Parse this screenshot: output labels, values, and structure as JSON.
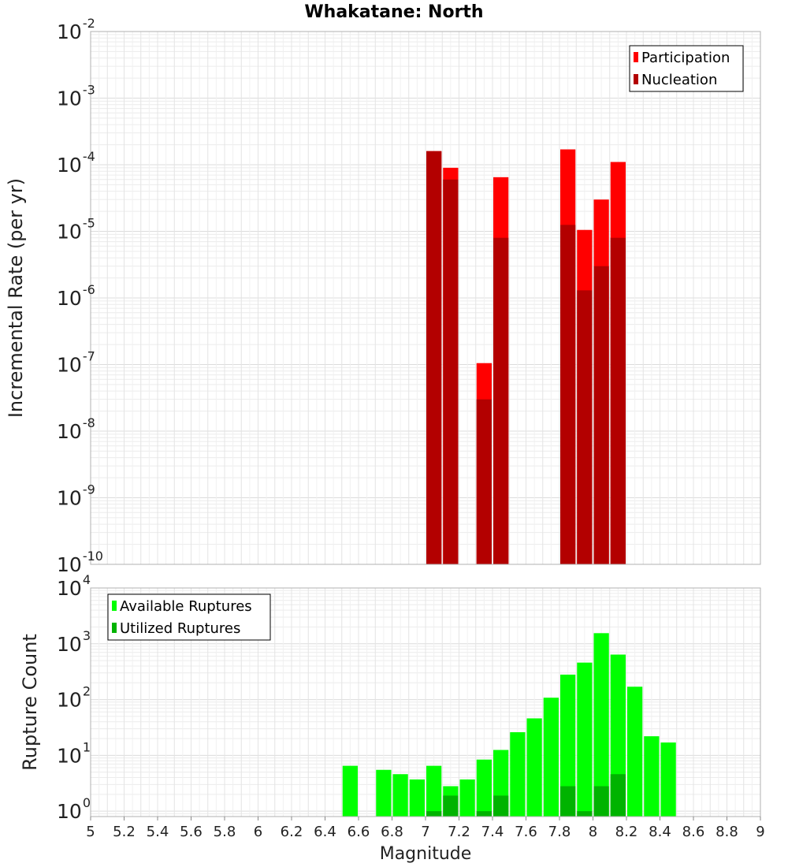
{
  "chart_data": [
    {
      "type": "bar",
      "title": "Whakatane: North",
      "ylabel": "Incremental Rate (per yr)",
      "yscale": "log",
      "ylim": [
        1e-10,
        0.01
      ],
      "xlim": [
        5,
        9
      ],
      "grid": true,
      "legend_position": "top-right",
      "bar_width": 0.1,
      "series": [
        {
          "name": "Participation",
          "color": "#ff0000",
          "x": [
            7.05,
            7.15,
            7.35,
            7.45,
            7.85,
            7.95,
            8.05,
            8.15
          ],
          "values": [
            0.00016,
            9e-05,
            1.05e-07,
            6.5e-05,
            0.00017,
            1.05e-05,
            3e-05,
            0.00011
          ]
        },
        {
          "name": "Nucleation",
          "color": "#b30000",
          "x": [
            7.05,
            7.15,
            7.35,
            7.45,
            7.85,
            7.95,
            8.05,
            8.15
          ],
          "values": [
            0.00016,
            6e-05,
            3e-08,
            8e-06,
            1.25e-05,
            1.3e-06,
            3e-06,
            8e-06
          ]
        }
      ]
    },
    {
      "type": "bar",
      "title": "",
      "ylabel": "Rupture Count",
      "xlabel": "Magnitude",
      "yscale": "log",
      "ylim": [
        0.8,
        10000
      ],
      "xlim": [
        5,
        9
      ],
      "xticks": [
        "5",
        "5.2",
        "5.4",
        "5.6",
        "5.8",
        "6",
        "6.2",
        "6.4",
        "6.6",
        "6.8",
        "7",
        "7.2",
        "7.4",
        "7.6",
        "7.8",
        "8",
        "8.2",
        "8.4",
        "8.6",
        "8.8",
        "9"
      ],
      "grid": true,
      "legend_position": "top-left",
      "bar_width": 0.1,
      "series": [
        {
          "name": "Available Ruptures",
          "color": "#00ff00",
          "x": [
            6.55,
            6.75,
            6.85,
            6.95,
            7.05,
            7.15,
            7.25,
            7.35,
            7.45,
            7.55,
            7.65,
            7.75,
            7.85,
            7.95,
            8.05,
            8.15,
            8.25,
            8.35,
            8.45
          ],
          "values": [
            6.5,
            5.5,
            4.6,
            3.7,
            6.5,
            2.8,
            3.7,
            8.4,
            12.5,
            26,
            46,
            108,
            280,
            460,
            1550,
            640,
            170,
            22,
            17
          ]
        },
        {
          "name": "Utilized Ruptures",
          "color": "#00b300",
          "x": [
            7.05,
            7.15,
            7.35,
            7.45,
            7.85,
            7.95,
            8.05,
            8.15
          ],
          "values": [
            1,
            1.9,
            1,
            1.9,
            2.8,
            1,
            2.8,
            4.6
          ]
        }
      ]
    }
  ]
}
